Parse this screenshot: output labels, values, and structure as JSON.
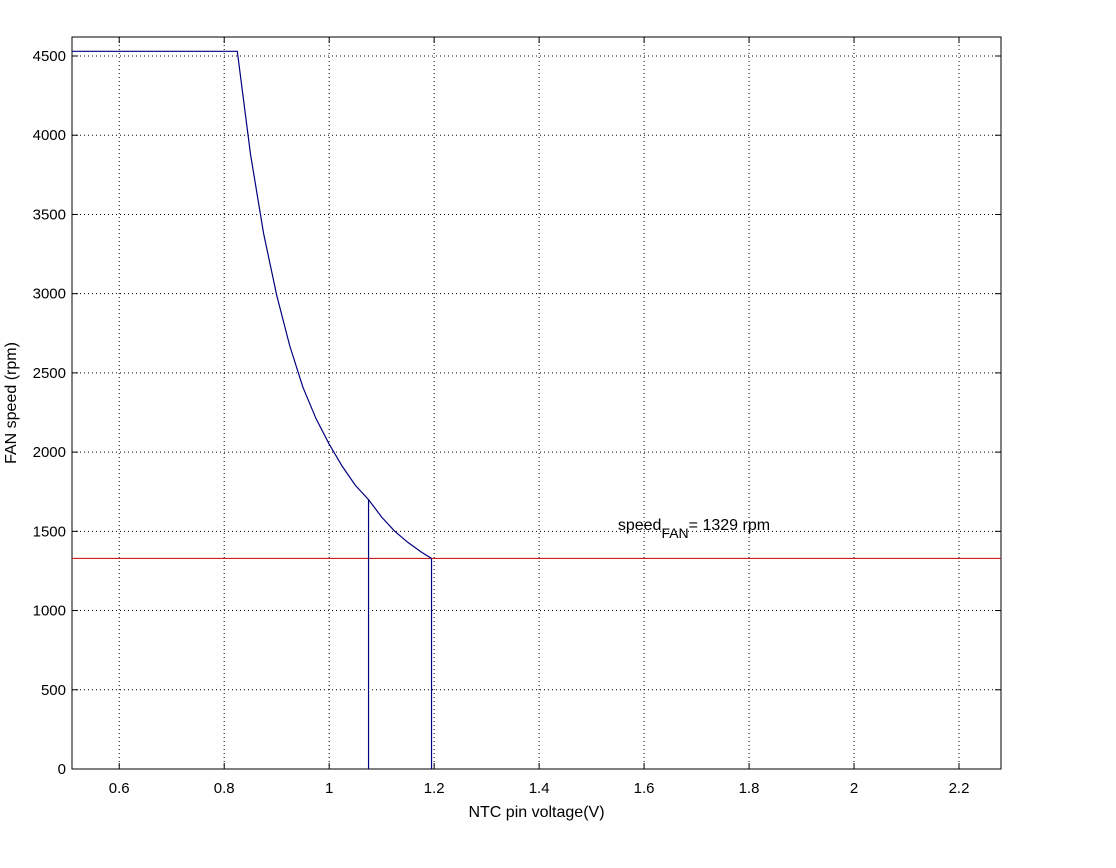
{
  "chart_data": {
    "type": "line",
    "title": "",
    "xlabel": "NTC pin voltage(V)",
    "ylabel": "FAN speed (rpm)",
    "xlim": [
      0.51,
      2.28
    ],
    "ylim": [
      0,
      4620
    ],
    "xticks": [
      0.6,
      0.8,
      1,
      1.2,
      1.4,
      1.6,
      1.8,
      2,
      2.2
    ],
    "xtick_labels": [
      "0.6",
      "0.8",
      "1",
      "1.2",
      "1.4",
      "1.6",
      "1.8",
      "2",
      "2.2"
    ],
    "yticks": [
      0,
      500,
      1000,
      1500,
      2000,
      2500,
      3000,
      3500,
      4000,
      4500
    ],
    "ytick_labels": [
      "0",
      "500",
      "1000",
      "1500",
      "2000",
      "2500",
      "3000",
      "3500",
      "4000",
      "4500"
    ],
    "grid": true,
    "colors": {
      "curve": "#00007f",
      "threshold": "#cc0000",
      "axes": "#000000"
    },
    "series": [
      {
        "color": "#00007f",
        "x": [
          0.51,
          0.825,
          0.85,
          0.875,
          0.9,
          0.925,
          0.95,
          0.975,
          1.0,
          1.025,
          1.05,
          1.075,
          1.1,
          1.125,
          1.15,
          1.175,
          1.195
        ],
        "y": [
          4530,
          4530,
          3880,
          3380,
          2990,
          2670,
          2410,
          2210,
          2050,
          1910,
          1790,
          1700,
          1590,
          1500,
          1430,
          1370,
          1329
        ]
      }
    ],
    "vertical_lines": [
      {
        "x": 1.075,
        "y_top": 1700,
        "color": "#00007f"
      },
      {
        "x": 1.195,
        "y_top": 1329,
        "color": "#00007f"
      }
    ],
    "horizontal_lines": [
      {
        "y": 1329,
        "color": "#cc0000"
      }
    ],
    "annotations": [
      {
        "x": 1.55,
        "y": 1510,
        "main": "speed",
        "subscript": "FAN",
        "rest": "= 1329 rpm"
      }
    ]
  }
}
